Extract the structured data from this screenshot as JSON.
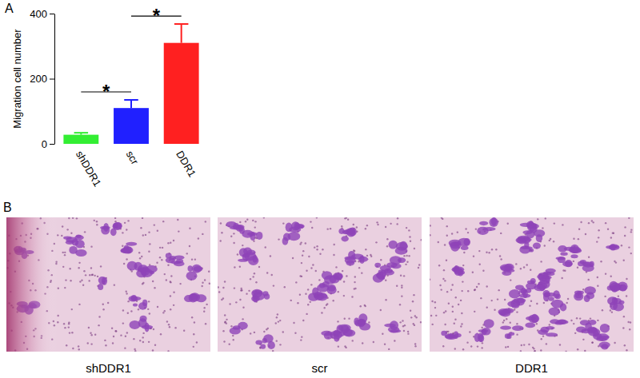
{
  "chart_data": {
    "type": "bar",
    "y_label": "Migration cell number",
    "categories": [
      "shDDR1",
      "scr",
      "DDR1"
    ],
    "values": [
      28,
      110,
      310
    ],
    "errors": [
      6,
      25,
      58
    ],
    "colors": [
      "#33ee33",
      "#2020ff",
      "#ff2020"
    ],
    "ylim": [
      0,
      400
    ],
    "yticks": [
      0,
      200,
      400
    ],
    "grid": false,
    "annotations": [
      {
        "text": "*",
        "pair": [
          "shDDR1",
          "scr"
        ]
      },
      {
        "text": "*",
        "pair": [
          "scr",
          "DDR1"
        ]
      }
    ]
  },
  "figure": {
    "panels": [
      {
        "label": "A"
      },
      {
        "label": "B",
        "images": [
          {
            "caption": "shDDR1"
          },
          {
            "caption": "scr"
          },
          {
            "caption": "DDR1"
          }
        ]
      }
    ]
  }
}
